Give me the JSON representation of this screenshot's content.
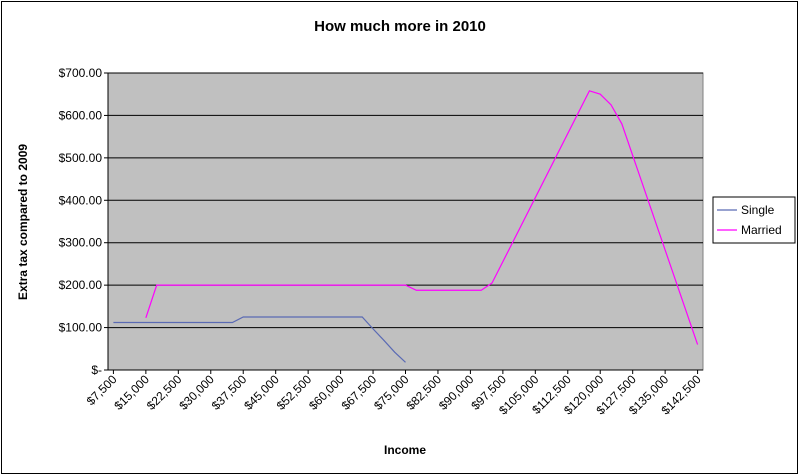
{
  "chart_data": {
    "type": "line",
    "title": "How much more in 2010",
    "x_label": "Income",
    "y_label": "Extra tax compared to 2009",
    "xlim": [
      6250,
      143750
    ],
    "xticks": [
      {
        "value": 7500,
        "label": "$7,500"
      },
      {
        "value": 15000,
        "label": "$15,000"
      },
      {
        "value": 22500,
        "label": "$22,500"
      },
      {
        "value": 30000,
        "label": "$30,000"
      },
      {
        "value": 37500,
        "label": "$37,500"
      },
      {
        "value": 45000,
        "label": "$45,000"
      },
      {
        "value": 52500,
        "label": "$52,500"
      },
      {
        "value": 60000,
        "label": "$60,000"
      },
      {
        "value": 67500,
        "label": "$67,500"
      },
      {
        "value": 75000,
        "label": "$75,000"
      },
      {
        "value": 82500,
        "label": "$82,500"
      },
      {
        "value": 90000,
        "label": "$90,000"
      },
      {
        "value": 97500,
        "label": "$97,500"
      },
      {
        "value": 105000,
        "label": "$105,000"
      },
      {
        "value": 112500,
        "label": "$112,500"
      },
      {
        "value": 120000,
        "label": "$120,000"
      },
      {
        "value": 127500,
        "label": "$127,500"
      },
      {
        "value": 135000,
        "label": "$135,000"
      },
      {
        "value": 142500,
        "label": "$142,500"
      }
    ],
    "ylim": [
      0,
      700
    ],
    "yticks": [
      {
        "value": 0,
        "label": "$-"
      },
      {
        "value": 100,
        "label": "$100.00"
      },
      {
        "value": 200,
        "label": "$200.00"
      },
      {
        "value": 300,
        "label": "$300.00"
      },
      {
        "value": 400,
        "label": "$400.00"
      },
      {
        "value": 500,
        "label": "$500.00"
      },
      {
        "value": 600,
        "label": "$600.00"
      },
      {
        "value": 700,
        "label": "$700.00"
      }
    ],
    "grid": true,
    "legend": "right",
    "series": [
      {
        "name": "Single",
        "color": "#5a6ab4",
        "x": [
          7500,
          35000,
          37500,
          65000,
          67500,
          70000,
          72500,
          75000
        ],
        "values": [
          112,
          112,
          125,
          125,
          97,
          70,
          42,
          18
        ]
      },
      {
        "name": "Married",
        "color": "#ff00ff",
        "x": [
          15000,
          17500,
          75000,
          77500,
          92500,
          95000,
          117500,
          120000,
          122500,
          125000,
          142500
        ],
        "values": [
          123,
          200,
          200,
          188,
          188,
          205,
          658,
          650,
          625,
          580,
          60
        ]
      }
    ]
  }
}
